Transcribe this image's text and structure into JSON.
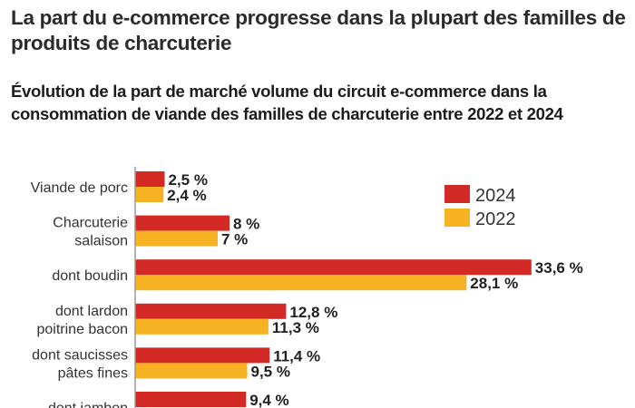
{
  "header": {
    "title": "La part du e-commerce progresse dans la plupart des familles de produits de charcuterie",
    "subtitle": "Évolution de la part de marché volume du circuit e-commerce dans la consommation de viande des familles de charcuterie entre 2022 et 2024"
  },
  "chart_data": {
    "type": "bar",
    "orientation": "horizontal",
    "title": "La part du e-commerce progresse dans la plupart des familles de produits de charcuterie",
    "subtitle": "Évolution de la part de marché volume du circuit e-commerce dans la consommation de viande des familles de charcuterie entre 2022 et 2024",
    "categories": [
      [
        "Viande de porc"
      ],
      [
        "Charcuterie",
        "salaison"
      ],
      [
        "dont boudin"
      ],
      [
        "dont lardon",
        "poitrine bacon"
      ],
      [
        "dont saucisses",
        "pâtes fines"
      ],
      [
        "dont jambon"
      ]
    ],
    "series": [
      {
        "name": "2024",
        "color": "#d42a26",
        "values": [
          2.5,
          8,
          33.6,
          12.8,
          11.4,
          9.4
        ],
        "labels": [
          "2,5 %",
          "8 %",
          "33,6 %",
          "12,8 %",
          "11,4 %",
          "9,4 %"
        ]
      },
      {
        "name": "2022",
        "color": "#f6b223",
        "values": [
          2.4,
          7,
          28.1,
          11.3,
          9.5,
          null
        ],
        "labels": [
          "2,4 %",
          "7 %",
          "28,1 %",
          "11,3 %",
          "9,5 %",
          ""
        ]
      }
    ],
    "xlim": [
      0,
      35
    ],
    "xlabel": "",
    "ylabel": "",
    "legend": {
      "placement": "top-right",
      "entries": [
        "2024",
        "2022"
      ]
    },
    "grid": false
  }
}
